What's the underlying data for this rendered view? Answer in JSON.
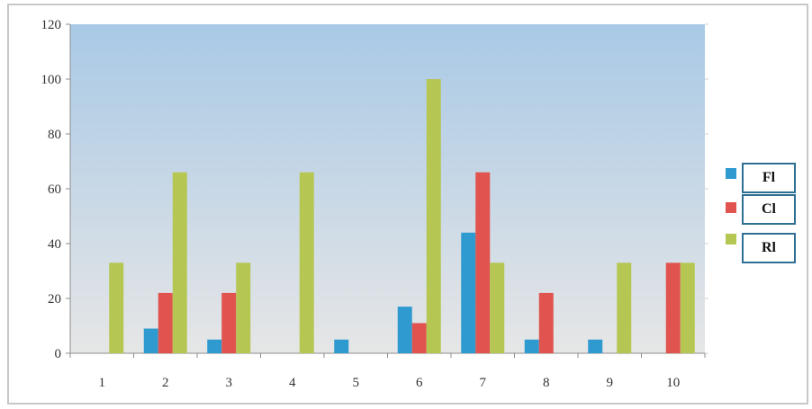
{
  "chart_data": {
    "type": "bar",
    "categories": [
      "1",
      "2",
      "3",
      "4",
      "5",
      "6",
      "7",
      "8",
      "9",
      "10"
    ],
    "series": [
      {
        "name": "Fl",
        "color": "#2e9ad0",
        "values": [
          0,
          9,
          5,
          0,
          5,
          17,
          44,
          5,
          5,
          0
        ]
      },
      {
        "name": "Cl",
        "color": "#e0534f",
        "values": [
          0,
          22,
          22,
          0,
          0,
          11,
          66,
          22,
          0,
          33
        ]
      },
      {
        "name": "Rl",
        "color": "#b5c752",
        "values": [
          33,
          66,
          33,
          66,
          0,
          100,
          33,
          0,
          33,
          33
        ]
      }
    ],
    "ylim": [
      0,
      120
    ],
    "yticks": [
      "0",
      "20",
      "40",
      "60",
      "80",
      "100",
      "120"
    ],
    "legend_position": "right",
    "plot_background": "gradient light blue to light gray"
  }
}
